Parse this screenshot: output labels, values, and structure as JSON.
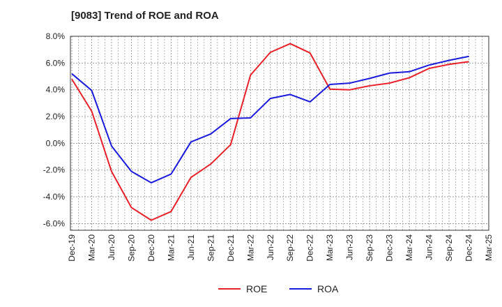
{
  "title": "[9083]  Trend of ROE and ROA",
  "chart_data": {
    "type": "line",
    "title": "[9083]  Trend of ROE and ROA",
    "categories": [
      "Dec-19",
      "Mar-20",
      "Jun-20",
      "Sep-20",
      "Dec-20",
      "Mar-21",
      "Jun-21",
      "Sep-21",
      "Dec-21",
      "Mar-22",
      "Jun-22",
      "Sep-22",
      "Dec-22",
      "Mar-23",
      "Jun-23",
      "Sep-23",
      "Dec-23",
      "Mar-24",
      "Jun-24",
      "Sep-24",
      "Dec-24",
      "Mar-25"
    ],
    "y_ticks": [
      "8.0%",
      "6.0%",
      "4.0%",
      "2.0%",
      "0.0%",
      "-2.0%",
      "-4.0%",
      "-6.0%"
    ],
    "y_tick_values": [
      8,
      6,
      4,
      2,
      0,
      -2,
      -4,
      -6
    ],
    "ylim": [
      -6.5,
      8
    ],
    "grid": true,
    "legend_position": "bottom",
    "series": [
      {
        "name": "ROE",
        "color": "#e8202a",
        "values": [
          4.8,
          2.4,
          -2.1,
          -4.8,
          -5.75,
          -5.1,
          -2.55,
          -1.55,
          -0.1,
          5.1,
          6.8,
          7.45,
          6.75,
          4.05,
          4.0,
          4.3,
          4.5,
          4.9,
          5.6,
          5.9,
          6.1,
          null
        ]
      },
      {
        "name": "ROA",
        "color": "#1a1adc",
        "values": [
          5.2,
          3.95,
          -0.2,
          -2.1,
          -2.95,
          -2.3,
          0.1,
          0.7,
          1.85,
          1.9,
          3.35,
          3.65,
          3.1,
          4.4,
          4.5,
          4.85,
          5.25,
          5.35,
          5.85,
          6.2,
          6.5,
          null
        ]
      }
    ]
  }
}
